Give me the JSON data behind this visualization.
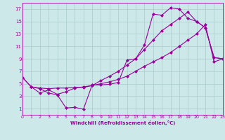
{
  "xlabel": "Windchill (Refroidissement éolien,°C)",
  "bg_color": "#cce8e8",
  "line_color": "#990099",
  "grid_color": "#aacccc",
  "curve1_x": [
    0,
    1,
    2,
    3,
    4,
    5,
    6,
    7,
    8,
    9,
    10,
    11,
    12,
    13,
    14,
    15,
    16,
    17,
    18,
    19,
    20,
    21,
    22,
    23
  ],
  "curve1_y": [
    6.0,
    4.5,
    4.2,
    3.5,
    3.2,
    1.1,
    1.2,
    0.9,
    4.8,
    4.8,
    4.9,
    5.2,
    8.8,
    9.0,
    11.2,
    16.2,
    16.0,
    17.2,
    17.0,
    15.5,
    15.0,
    14.0,
    9.2,
    9.0
  ],
  "curve2_x": [
    0,
    1,
    2,
    3,
    4,
    5,
    6,
    7,
    8,
    9,
    10,
    11,
    12,
    13,
    14,
    15,
    16,
    17,
    18,
    19,
    20,
    21,
    22,
    23
  ],
  "curve2_y": [
    6.0,
    4.5,
    4.3,
    4.2,
    4.3,
    4.3,
    4.4,
    4.4,
    4.7,
    5.5,
    6.2,
    7.0,
    8.0,
    9.0,
    10.5,
    12.0,
    13.5,
    14.5,
    15.5,
    16.5,
    15.0,
    14.0,
    9.2,
    9.0
  ],
  "curve3_x": [
    1,
    2,
    3,
    4,
    5,
    6,
    7,
    8,
    9,
    10,
    11,
    12,
    13,
    14,
    15,
    16,
    17,
    18,
    19,
    20,
    21,
    22,
    23
  ],
  "curve3_y": [
    4.5,
    3.5,
    4.0,
    3.3,
    3.7,
    4.3,
    4.5,
    4.7,
    5.0,
    5.3,
    5.7,
    6.2,
    7.0,
    7.8,
    8.5,
    9.2,
    10.0,
    11.0,
    12.0,
    13.0,
    14.5,
    8.5,
    9.0
  ],
  "xlim": [
    0,
    23
  ],
  "ylim": [
    0,
    18
  ],
  "yticks": [
    1,
    3,
    5,
    7,
    9,
    11,
    13,
    15,
    17
  ],
  "xticks": [
    0,
    1,
    2,
    3,
    4,
    5,
    6,
    7,
    8,
    9,
    10,
    11,
    12,
    13,
    14,
    15,
    16,
    17,
    18,
    19,
    20,
    21,
    22,
    23
  ]
}
